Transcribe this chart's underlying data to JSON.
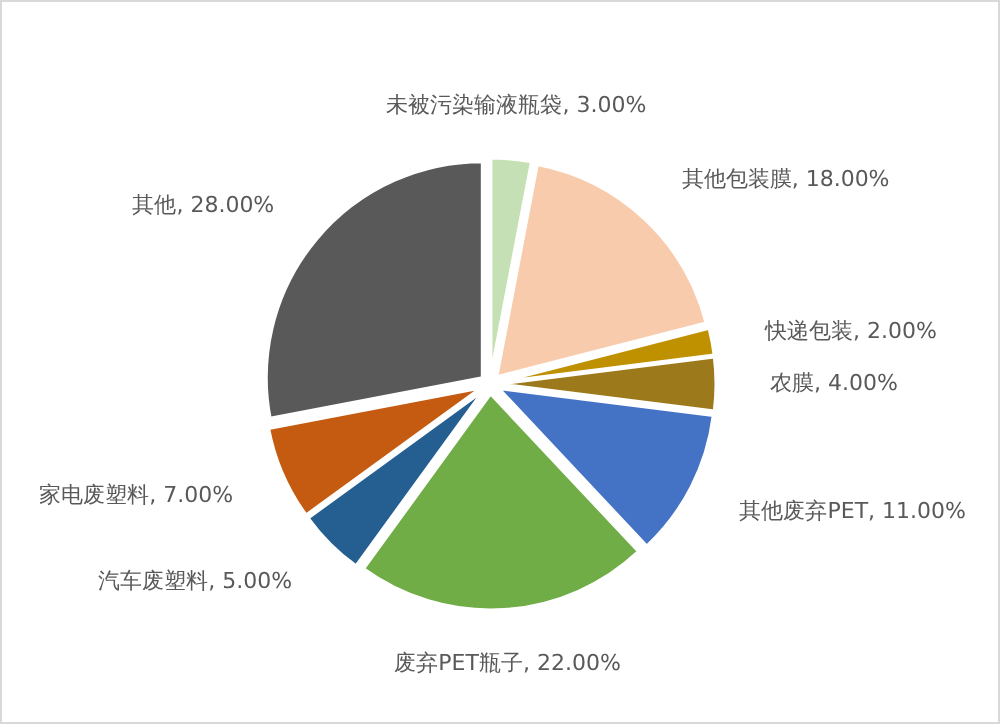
{
  "chart_data": {
    "type": "pie",
    "categories": [
      "未被污染输液瓶袋",
      "其他包装膜",
      "快递包装",
      "农膜",
      "其他废弃PET",
      "废弃PET瓶子",
      "汽车废塑料",
      "家电废塑料",
      "其他"
    ],
    "values": [
      3,
      18,
      2,
      4,
      11,
      22,
      5,
      7,
      28
    ],
    "value_labels": [
      "3.00%",
      "18.00%",
      "2.00%",
      "4.00%",
      "11.00%",
      "22.00%",
      "5.00%",
      "7.00%",
      "28.00%"
    ],
    "colors": [
      "#c5e0b4",
      "#f8cbad",
      "#bf9000",
      "#9c7a1c",
      "#4472c4",
      "#70ad47",
      "#255e91",
      "#c55a11",
      "#595959"
    ]
  }
}
